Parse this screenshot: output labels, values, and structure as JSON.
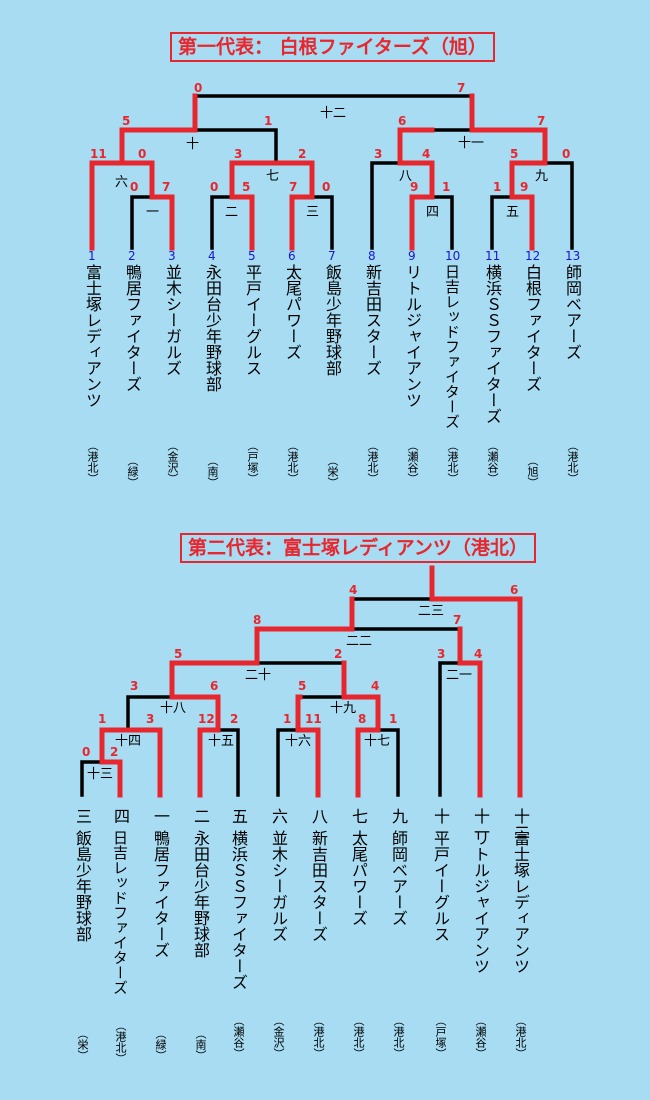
{
  "bracket1": {
    "title": "第一代表： 白根ファイターズ（旭）",
    "teams": [
      {
        "num": "1",
        "name": "富士塚レディアンツ",
        "club": "（港北）"
      },
      {
        "num": "2",
        "name": "鴨居ファイターズ",
        "club": "（緑）"
      },
      {
        "num": "3",
        "name": "並木シーガルズ",
        "club": "（金沢）"
      },
      {
        "num": "4",
        "name": "永田台少年野球部",
        "club": "（南）"
      },
      {
        "num": "5",
        "name": "平戸イーグルス",
        "club": "（戸塚）"
      },
      {
        "num": "6",
        "name": "太尾パワーズ",
        "club": "（港北）"
      },
      {
        "num": "7",
        "name": "飯島少年野球部",
        "club": "（栄）"
      },
      {
        "num": "8",
        "name": "新吉田スターズ",
        "club": "（港北）"
      },
      {
        "num": "9",
        "name": "リトルジャイアンツ",
        "club": "（瀬谷）"
      },
      {
        "num": "10",
        "name": "日吉レッドファイターズ",
        "club": "（港北）"
      },
      {
        "num": "11",
        "name": "横浜ＳＳファイターズ",
        "club": "（瀬谷）"
      },
      {
        "num": "12",
        "name": "白根ファイターズ",
        "club": "（旭）"
      },
      {
        "num": "13",
        "name": "師岡ベアーズ",
        "club": "（港北）"
      }
    ],
    "rounds": {
      "r1": "一",
      "r2": "二",
      "r3": "三",
      "r4": "四",
      "r5": "五",
      "r6": "六",
      "r7": "七",
      "r8": "八",
      "r9": "九",
      "r10": "十",
      "r11": "十一",
      "r12": "十二"
    },
    "scores": {
      "m1a": "0",
      "m1b": "7",
      "m2a": "0",
      "m2b": "5",
      "m3a": "7",
      "m3b": "0",
      "m4a": "9",
      "m4b": "1",
      "m5a": "1",
      "m5b": "9",
      "m6a": "11",
      "m6b": "0",
      "m7a": "3",
      "m7b": "2",
      "m8a": "3",
      "m8b": "4",
      "m9a": "5",
      "m9b": "0",
      "m10a": "5",
      "m10b": "1",
      "m11a": "6",
      "m11b": "7",
      "m12a": "0",
      "m12b": "7"
    }
  },
  "bracket2": {
    "title": "第二代表：富士塚レディアンツ（港北）",
    "teams": [
      {
        "seed": "三",
        "name": "飯島少年野球部",
        "club": "（栄）"
      },
      {
        "seed": "四",
        "name": "日吉レッドファイターズ",
        "club": "（港北）"
      },
      {
        "seed": "一",
        "name": "鴨居ファイターズ",
        "club": "（緑）"
      },
      {
        "seed": "二",
        "name": "永田台少年野球部",
        "club": "（南）"
      },
      {
        "seed": "五",
        "name": "横浜ＳＳファイターズ",
        "club": "（瀬谷）"
      },
      {
        "seed": "六",
        "name": "並木シーガルズ",
        "club": "（金沢）"
      },
      {
        "seed": "八",
        "name": "新吉田スターズ",
        "club": "（港北）"
      },
      {
        "seed": "七",
        "name": "太尾パワーズ",
        "club": "（港北）"
      },
      {
        "seed": "九",
        "name": "師岡ベアーズ",
        "club": "（港北）"
      },
      {
        "seed": "十",
        "name": "平戸イーグルス",
        "club": "（戸塚）"
      },
      {
        "seed": "十一",
        "name": "リトルジャイアンツ",
        "club": "（瀬谷）"
      },
      {
        "seed": "十二",
        "name": "富士塚レディアンツ",
        "club": "（港北）"
      }
    ],
    "rounds": {
      "r13": "十三",
      "r14": "十四",
      "r15": "十五",
      "r16": "十六",
      "r17": "十七",
      "r18": "十八",
      "r19": "十九",
      "r20": "二十",
      "r21": "二一",
      "r22": "二二",
      "r23": "二三"
    },
    "scores": {
      "m13a": "0",
      "m13b": "2",
      "m14a": "1",
      "m14b": "3",
      "m15a": "12",
      "m15b": "2",
      "m16a": "1",
      "m16b": "11",
      "m17a": "8",
      "m17b": "1",
      "m18a": "3",
      "m18b": "6",
      "m19a": "5",
      "m19b": "4",
      "m20a": "5",
      "m20b": "2",
      "m21a": "3",
      "m21b": "4",
      "m22a": "8",
      "m22b": "7",
      "m23a": "4",
      "m23b": "6"
    }
  }
}
